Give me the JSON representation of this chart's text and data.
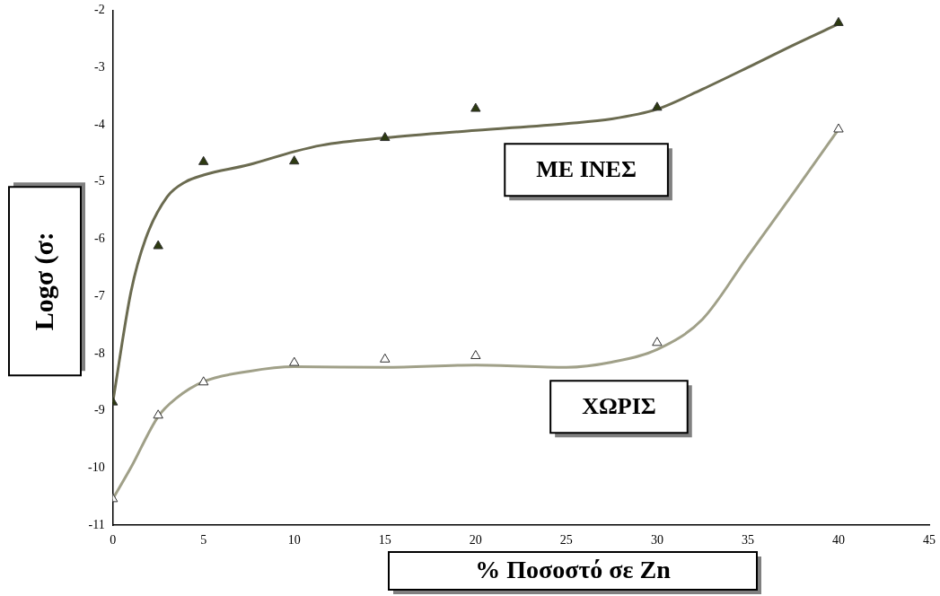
{
  "chart_data": {
    "type": "scatter",
    "xlabel": "% Ποσοστό σε Zn",
    "ylabel": "Logσ (σ:",
    "xlim": [
      0,
      45
    ],
    "xticks": [
      0,
      5,
      10,
      15,
      20,
      25,
      30,
      35,
      40,
      45
    ],
    "ylim": [
      -11,
      -2
    ],
    "yticks": [
      -2,
      -3,
      -4,
      -5,
      -6,
      -7,
      -8,
      -9,
      -10,
      -11
    ],
    "grid": false,
    "legend": false,
    "marker": "triangle",
    "series": [
      {
        "name": "ΜΕ ΙΝΕΣ",
        "type": "scatter",
        "color": "#2d3a10",
        "x": [
          0,
          2.5,
          5,
          10,
          15,
          20,
          30,
          40
        ],
        "values": [
          -8.85,
          -6.12,
          -4.65,
          -4.64,
          -4.23,
          -3.72,
          -3.7,
          -2.22
        ]
      },
      {
        "type": "line",
        "color": "#6b6b50",
        "marker": "none",
        "x": [
          0,
          1,
          1.8,
          3,
          4,
          5,
          7.5,
          10,
          11.5,
          15,
          20,
          25,
          27.5,
          30,
          32.5,
          35,
          37.5,
          40
        ],
        "values": [
          -8.85,
          -6.92,
          -6.0,
          -5.26,
          -5.0,
          -4.88,
          -4.7,
          -4.47,
          -4.36,
          -4.23,
          -4.1,
          -3.98,
          -3.9,
          -3.73,
          -3.38,
          -3.0,
          -2.61,
          -2.24
        ]
      },
      {
        "name": "ΧΩΡΙΣ",
        "type": "scatter",
        "color": "#ffffff",
        "x": [
          0,
          2.5,
          5,
          10,
          15,
          20,
          30,
          40
        ],
        "values": [
          -10.54,
          -9.08,
          -8.5,
          -8.16,
          -8.1,
          -8.04,
          -7.81,
          -4.08
        ]
      },
      {
        "type": "line",
        "color": "#a0a088",
        "marker": "none",
        "x": [
          0,
          1,
          2.5,
          3.5,
          5,
          7.5,
          10,
          15,
          20,
          25,
          27.5,
          30,
          32.5,
          35,
          37.5,
          40
        ],
        "values": [
          -10.54,
          -9.99,
          -9.1,
          -8.78,
          -8.49,
          -8.31,
          -8.23,
          -8.24,
          -8.2,
          -8.24,
          -8.15,
          -7.93,
          -7.4,
          -6.3,
          -5.2,
          -4.08
        ]
      }
    ]
  }
}
